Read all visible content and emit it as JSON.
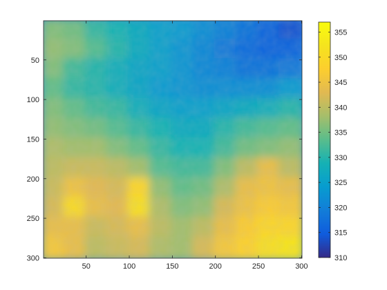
{
  "chart_data": {
    "type": "heatmap",
    "title": "",
    "xlabel": "",
    "ylabel": "",
    "xlim": [
      0.5,
      300.5
    ],
    "ylim": [
      0.5,
      300.5
    ],
    "y_direction": "reverse",
    "grid": false,
    "x_ticks": [
      50,
      100,
      150,
      200,
      250,
      300
    ],
    "x_tick_labels": [
      "50",
      "100",
      "150",
      "200",
      "250",
      "300"
    ],
    "y_ticks": [
      50,
      100,
      150,
      200,
      250,
      300
    ],
    "y_tick_labels": [
      "50",
      "100",
      "150",
      "200",
      "250",
      "300"
    ],
    "colormap": "parula",
    "color_range": [
      310,
      357
    ],
    "colorbar": {
      "location": "right",
      "ticks": [
        310,
        315,
        320,
        325,
        330,
        335,
        340,
        345,
        350,
        355
      ],
      "tick_labels": [
        "310",
        "315",
        "320",
        "325",
        "330",
        "335",
        "340",
        "345",
        "350",
        "355"
      ]
    },
    "surface_values": {
      "description_of_grid": "approximate values read at 25-pixel spacing, rows y=25..300, cols x=25..300",
      "x": [
        25,
        50,
        75,
        100,
        125,
        150,
        175,
        200,
        225,
        250,
        275,
        300
      ],
      "y": [
        25,
        50,
        75,
        100,
        125,
        150,
        175,
        200,
        225,
        250,
        275,
        300
      ],
      "z": [
        [
          336,
          335,
          331,
          329,
          327,
          325,
          324,
          322,
          320,
          318,
          316,
          314
        ],
        [
          337,
          336,
          333,
          330,
          327,
          325,
          323,
          321,
          319,
          317,
          316,
          316
        ],
        [
          336,
          332,
          330,
          328,
          326,
          325,
          323,
          321,
          320,
          318,
          318,
          319
        ],
        [
          334,
          331,
          330,
          328,
          326,
          324,
          323,
          322,
          322,
          322,
          322,
          324
        ],
        [
          336,
          334,
          332,
          331,
          328,
          326,
          325,
          325,
          326,
          327,
          328,
          330
        ],
        [
          337,
          336,
          335,
          333,
          331,
          329,
          327,
          327,
          330,
          332,
          333,
          334
        ],
        [
          339,
          338,
          338,
          336,
          334,
          331,
          329,
          329,
          332,
          335,
          336,
          337
        ],
        [
          340,
          341,
          341,
          340,
          338,
          333,
          332,
          332,
          336,
          340,
          344,
          340
        ],
        [
          341,
          345,
          343,
          342,
          349,
          337,
          334,
          335,
          339,
          344,
          345,
          344
        ],
        [
          342,
          350,
          344,
          343,
          351,
          339,
          336,
          337,
          342,
          345,
          347,
          346
        ],
        [
          344,
          344,
          341,
          342,
          344,
          340,
          338,
          340,
          344,
          347,
          349,
          349
        ],
        [
          346,
          344,
          340,
          341,
          342,
          339,
          338,
          342,
          346,
          348,
          351,
          352
        ]
      ]
    }
  }
}
